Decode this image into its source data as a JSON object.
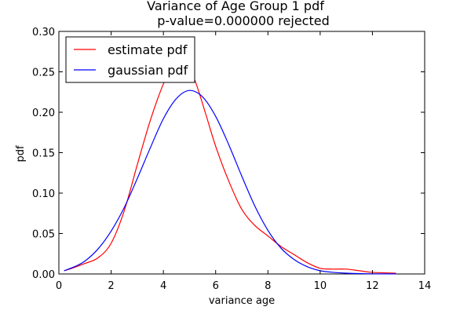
{
  "chart_data": {
    "type": "line",
    "title": "Variance of Age Group 1 pdf",
    "subtitle": "p-value=0.000000  rejected",
    "xlabel": "variance age",
    "ylabel": "pdf",
    "xlim": [
      0,
      14
    ],
    "ylim": [
      0,
      0.3
    ],
    "xticks": [
      0,
      2,
      4,
      6,
      8,
      10,
      12,
      14
    ],
    "xtick_labels": [
      "0",
      "2",
      "4",
      "6",
      "8",
      "10",
      "12",
      "14"
    ],
    "yticks": [
      0.0,
      0.05,
      0.1,
      0.15,
      0.2,
      0.25,
      0.3
    ],
    "ytick_labels": [
      "0.00",
      "0.05",
      "0.10",
      "0.15",
      "0.20",
      "0.25",
      "0.30"
    ],
    "grid": false,
    "legend": "top-left",
    "series": [
      {
        "name": "estimate pdf",
        "color": "#ff0000",
        "x": [
          0.2,
          0.5,
          1.0,
          1.5,
          2.0,
          2.5,
          3.0,
          3.5,
          4.0,
          4.3,
          4.6,
          4.9,
          5.2,
          5.6,
          6.0,
          6.5,
          7.0,
          7.5,
          8.0,
          8.5,
          9.0,
          9.5,
          10.0,
          10.5,
          11.0,
          11.5,
          12.0,
          12.9
        ],
        "y": [
          0.004,
          0.007,
          0.013,
          0.02,
          0.038,
          0.078,
          0.135,
          0.19,
          0.235,
          0.252,
          0.258,
          0.256,
          0.24,
          0.2,
          0.158,
          0.115,
          0.08,
          0.06,
          0.047,
          0.034,
          0.024,
          0.014,
          0.007,
          0.006,
          0.006,
          0.004,
          0.002,
          0.001
        ]
      },
      {
        "name": "gaussian pdf",
        "color": "#0000ff",
        "x": [
          0.2,
          0.6,
          1.0,
          1.5,
          2.0,
          2.5,
          3.0,
          3.5,
          4.0,
          4.5,
          5.0,
          5.5,
          6.0,
          6.5,
          7.0,
          7.5,
          8.0,
          8.5,
          9.0,
          9.5,
          10.0,
          10.5,
          11.0,
          11.5,
          12.0,
          12.9
        ],
        "y": [
          0.004,
          0.009,
          0.016,
          0.031,
          0.053,
          0.082,
          0.118,
          0.156,
          0.192,
          0.217,
          0.227,
          0.219,
          0.195,
          0.16,
          0.121,
          0.084,
          0.054,
          0.032,
          0.018,
          0.009,
          0.004,
          0.002,
          0.001,
          0.0005,
          0.0002,
          0.0001
        ]
      }
    ]
  }
}
